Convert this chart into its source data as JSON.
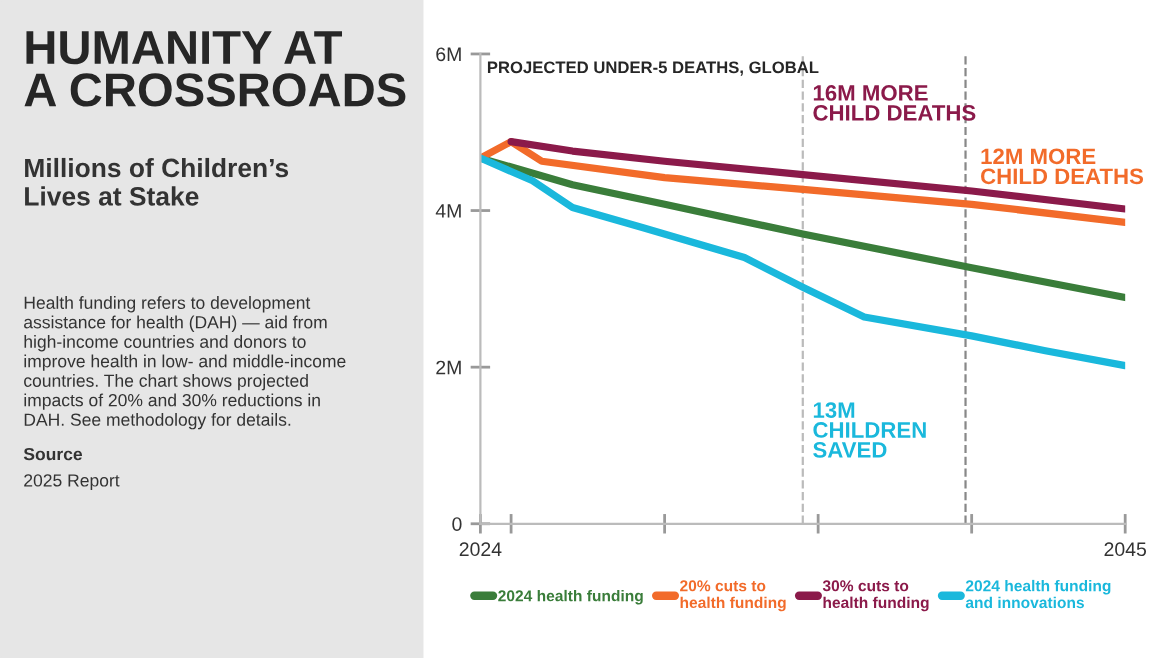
{
  "chart_data": {
    "type": "line",
    "title": "HUMANITY AT\nA CROSSROADS",
    "subtitle": "Millions of Children’s\nLives at Stake",
    "ylabel": "PROJECTED UNDER-5 DEATHS, GLOBAL",
    "annotations": [
      "Health funding refers to development\nassistance for health (DAH) — aid from\nhigh-income countries and donors to\nimprove health in low- and middle-income\ncountries. The chart shows projected\nimpacts of 20% and 30% reductions in\nDAH. See methodology for details.",
      "Source",
      "2025 Report",
      "16M MORE\nCHILD DEATHS",
      "12M MORE\nCHILD DEATHS",
      "13M\nCHILDREN\nSAVED"
    ],
    "series": [
      {
        "name": "2024 health funding",
        "color": "#3a7d3a",
        "x": [
          2024,
          2027,
          2030,
          2034.5,
          2040,
          2045
        ],
        "values": [
          4.67,
          4.33,
          4.08,
          3.7,
          3.27,
          2.89
        ]
      },
      {
        "name": "20% cuts to\nhealth funding",
        "color": "#f26b2a",
        "x": [
          2024,
          2025,
          2026,
          2030,
          2034.5,
          2040,
          2045
        ],
        "values": [
          4.67,
          4.88,
          4.63,
          4.42,
          4.27,
          4.08,
          3.85
        ]
      },
      {
        "name": "30% cuts to\nhealth funding",
        "color": "#8b1a4a",
        "x": [
          2025,
          2027,
          2030,
          2034.5,
          2040,
          2045
        ],
        "values": [
          4.88,
          4.76,
          4.63,
          4.46,
          4.25,
          4.02
        ]
      },
      {
        "name": "2024 health funding\nand innovations",
        "color": "#1ab8dc",
        "x": [
          2024,
          2025.7,
          2027,
          2029.3,
          2032.6,
          2034.5,
          2036.5,
          2040,
          2042.4,
          2045
        ],
        "values": [
          4.67,
          4.38,
          4.04,
          3.78,
          3.4,
          3.02,
          2.64,
          2.4,
          2.21,
          2.02
        ]
      }
    ],
    "xlim": [
      2024,
      2045
    ],
    "xticks": [
      2024,
      {
        "value": 2025,
        "label": null
      },
      {
        "value": 2030,
        "label": null
      },
      {
        "value": 2035,
        "label": null
      },
      {
        "value": 2040,
        "label": null
      },
      2045
    ],
    "ylim": [
      0,
      6
    ],
    "yticks": [
      {
        "value": 0,
        "label": "0"
      },
      {
        "value": 2,
        "label": "2M"
      },
      {
        "value": 4,
        "label": "4M"
      },
      {
        "value": 6,
        "label": "6M"
      }
    ],
    "ref_lines": [
      {
        "axis": "x",
        "value": 2034.5,
        "label": null,
        "color": "#bbbbbb",
        "line_style": "dashed"
      },
      {
        "axis": "x",
        "value": 2039.8,
        "label": null,
        "color": "#888888",
        "line_style": "dashed"
      }
    ],
    "grid": false,
    "legend": "bottom",
    "marker": "none",
    "line_style": "solid"
  }
}
